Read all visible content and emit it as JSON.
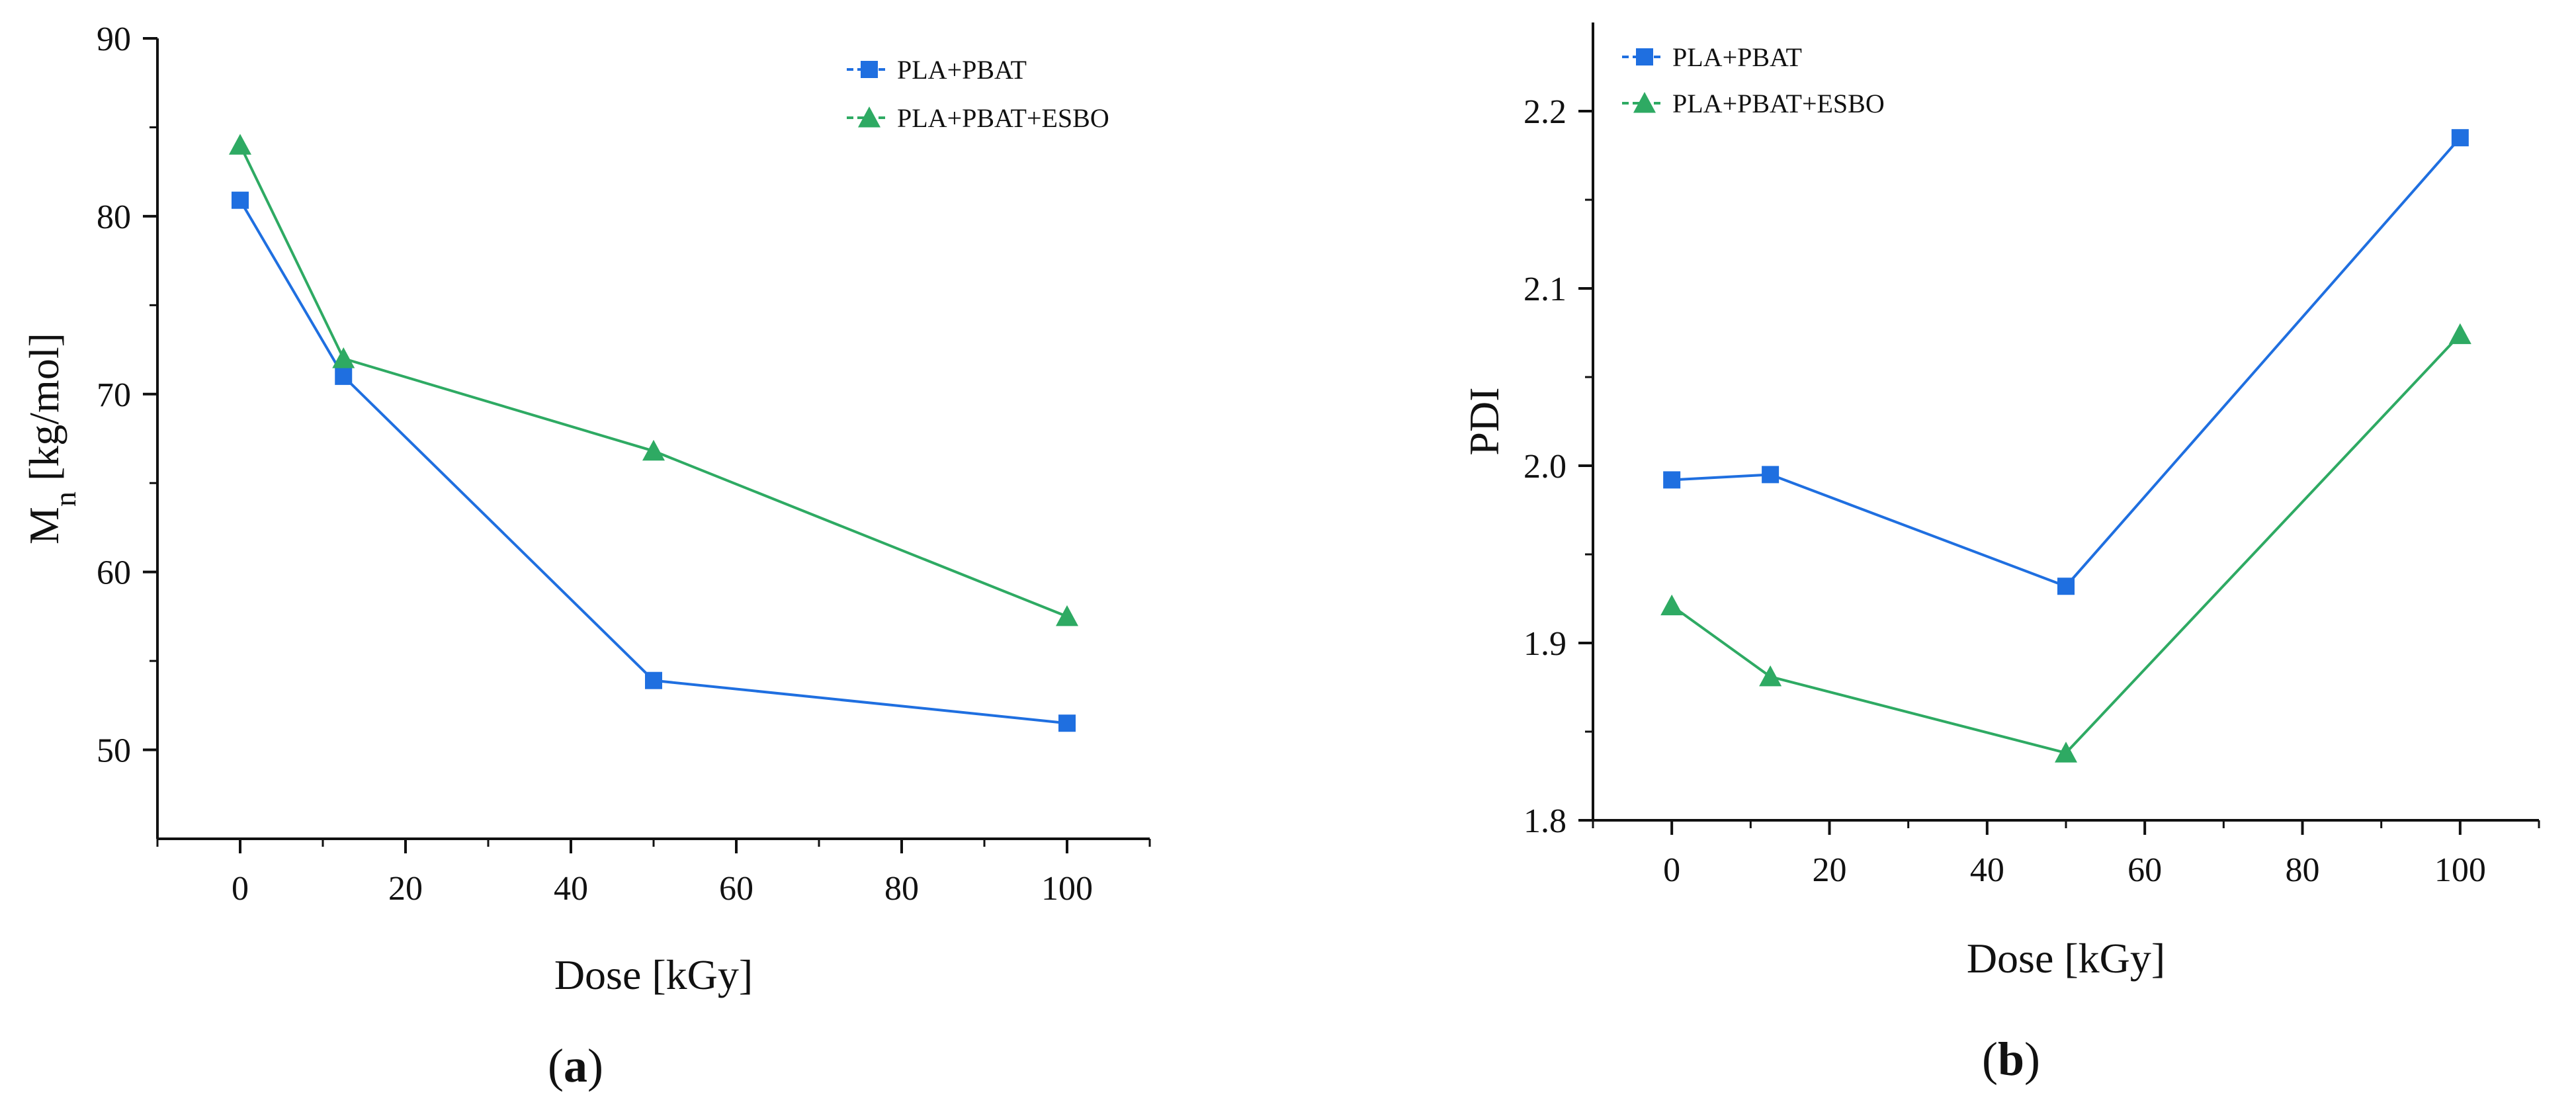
{
  "colors": {
    "series_blue": "#1f6fe0",
    "series_green": "#2eaa63",
    "axis": "#111111"
  },
  "chart_data": [
    {
      "id": "a",
      "type": "line",
      "panel_label": "a",
      "title": "",
      "xlabel": "Dose [kGy]",
      "ylabel": "Mn [kg/mol]",
      "ylabel_main": "M",
      "ylabel_sub": "n",
      "ylabel_rest": " [kg/mol]",
      "xlim": [
        -10,
        110
      ],
      "ylim": [
        45,
        90
      ],
      "xticks": [
        0,
        20,
        40,
        60,
        80,
        100
      ],
      "yticks": [
        50,
        60,
        70,
        80,
        90
      ],
      "xtick_labels": [
        "0",
        "20",
        "40",
        "60",
        "80",
        "100"
      ],
      "ytick_labels": [
        "50",
        "60",
        "70",
        "80",
        "90"
      ],
      "grid": false,
      "legend_position": "top-right",
      "series": [
        {
          "name": "PLA+PBAT",
          "marker": "square",
          "color": "#1f6fe0",
          "x": [
            0,
            12.5,
            50,
            100
          ],
          "y": [
            80.9,
            71.0,
            53.9,
            51.5
          ]
        },
        {
          "name": "PLA+PBAT+ESBO",
          "marker": "triangle",
          "color": "#2eaa63",
          "x": [
            0,
            12.5,
            50,
            100
          ],
          "y": [
            84.0,
            72.0,
            66.8,
            57.5
          ]
        }
      ]
    },
    {
      "id": "b",
      "type": "line",
      "panel_label": "b",
      "title": "",
      "xlabel": "Dose [kGy]",
      "ylabel": "PDI",
      "ylabel_main": "PDI",
      "ylabel_sub": "",
      "ylabel_rest": "",
      "xlim": [
        -10,
        110
      ],
      "ylim": [
        1.8,
        2.25
      ],
      "xticks": [
        0,
        20,
        40,
        60,
        80,
        100
      ],
      "yticks": [
        1.8,
        1.9,
        2.0,
        2.1,
        2.2
      ],
      "xtick_labels": [
        "0",
        "20",
        "40",
        "60",
        "80",
        "100"
      ],
      "ytick_labels": [
        "1.8",
        "1.9",
        "2.0",
        "2.1",
        "2.2"
      ],
      "grid": false,
      "legend_position": "top-left",
      "series": [
        {
          "name": "PLA+PBAT",
          "marker": "square",
          "color": "#1f6fe0",
          "x": [
            0,
            12.5,
            50,
            100
          ],
          "y": [
            1.992,
            1.995,
            1.932,
            2.185
          ]
        },
        {
          "name": "PLA+PBAT+ESBO",
          "marker": "triangle",
          "color": "#2eaa63",
          "x": [
            0,
            12.5,
            50,
            100
          ],
          "y": [
            1.921,
            1.881,
            1.838,
            2.074
          ]
        }
      ]
    }
  ]
}
